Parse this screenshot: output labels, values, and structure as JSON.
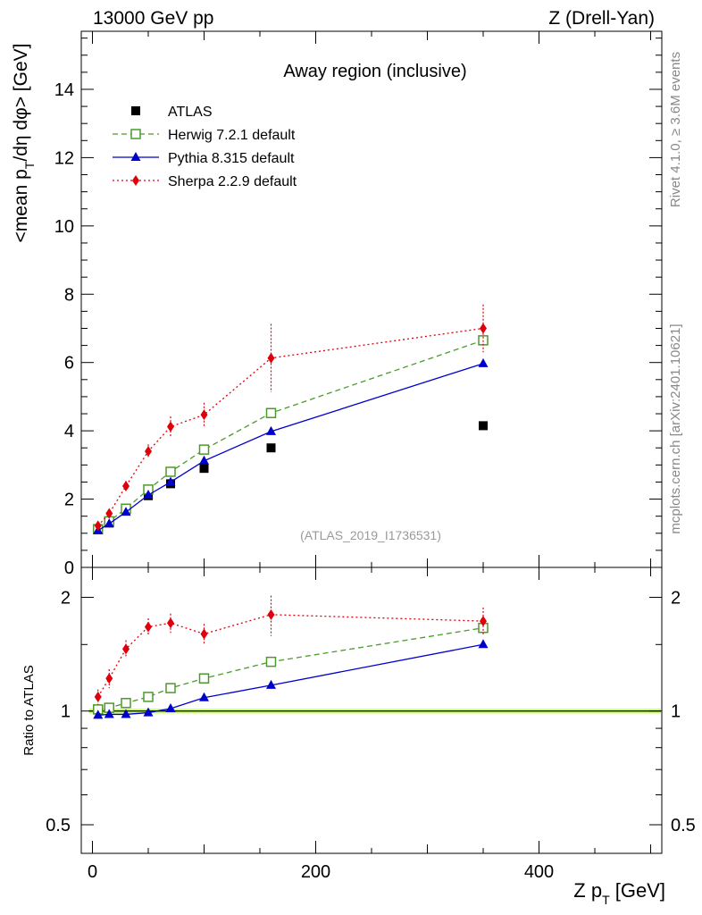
{
  "header": {
    "energy_label": "13000 GeV pp",
    "process_label": "Z (Drell-Yan)"
  },
  "side_labels": {
    "rivet": "Rivet 4.1.0, ≥ 3.6M events",
    "mcplots": "mcplots.cern.ch [arXiv:2401.10621]"
  },
  "chart_data": [
    {
      "type": "line",
      "panel": "main",
      "title": "Away region (inclusive)",
      "ylabel": "<mean p_T/dη dφ> [GeV]",
      "ylabel_parts": {
        "pre": "<mean p",
        "sub": "T",
        "post": "/dη dφ> [GeV]"
      },
      "xlim": [
        -10,
        510
      ],
      "ylim": [
        0,
        15.7
      ],
      "yticks": [
        0,
        2,
        4,
        6,
        8,
        10,
        12,
        14
      ],
      "yticklabels": [
        "0",
        "2",
        "4",
        "6",
        "8",
        "10",
        "12",
        "14"
      ],
      "watermark": "(ATLAS_2019_I1736531)",
      "legend_position": "top-left",
      "x": [
        5,
        15,
        30,
        50,
        70,
        100,
        160,
        350
      ],
      "series": [
        {
          "name": "ATLAS",
          "color": "#000000",
          "marker": "square",
          "line": "none",
          "values": [
            1.1,
            1.3,
            1.65,
            2.1,
            2.45,
            2.9,
            3.5,
            4.15
          ]
        },
        {
          "name": "Herwig 7.2.1 default",
          "color": "#4c9a2a",
          "marker": "open-square",
          "line": "dashed",
          "values": [
            1.12,
            1.35,
            1.72,
            2.28,
            2.8,
            3.45,
            4.52,
            6.65
          ]
        },
        {
          "name": "Pythia 8.315 default",
          "color": "#0000cc",
          "marker": "triangle",
          "line": "solid",
          "values": [
            1.08,
            1.28,
            1.62,
            2.12,
            2.5,
            3.12,
            3.98,
            5.97
          ]
        },
        {
          "name": "Sherpa 2.2.9 default",
          "color": "#e0000c",
          "marker": "diamond",
          "line": "dotted",
          "values": [
            1.22,
            1.58,
            2.38,
            3.4,
            4.12,
            4.47,
            6.13,
            7.0
          ],
          "errors": [
            0.1,
            0.12,
            0.15,
            0.2,
            0.3,
            0.35,
            1.0,
            0.7
          ]
        }
      ]
    },
    {
      "type": "line",
      "panel": "ratio",
      "ylabel": "Ratio to ATLAS",
      "xlabel": "Z p_T [GeV]",
      "xlabel_parts": {
        "pre": "Z p",
        "sub": "T",
        "post": " [GeV]"
      },
      "yscale": "log",
      "ylim": [
        0.42,
        2.4
      ],
      "yticks": [
        0.5,
        1,
        2
      ],
      "yticklabels": [
        "0.5",
        "1",
        "2"
      ],
      "xticks": [
        0,
        200,
        400
      ],
      "xticklabels": [
        "0",
        "200",
        "400"
      ],
      "reference": {
        "value": 1.0,
        "band": [
          0.985,
          1.015
        ],
        "band_color": "#ccff66"
      },
      "x": [
        5,
        15,
        30,
        50,
        70,
        100,
        160,
        350
      ],
      "series": [
        {
          "name": "Herwig 7.2.1 default",
          "color": "#4c9a2a",
          "marker": "open-square",
          "line": "dashed",
          "values": [
            1.01,
            1.02,
            1.05,
            1.09,
            1.15,
            1.22,
            1.35,
            1.66
          ]
        },
        {
          "name": "Pythia 8.315 default",
          "color": "#0000cc",
          "marker": "triangle",
          "line": "solid",
          "values": [
            0.975,
            0.98,
            0.98,
            0.99,
            1.015,
            1.085,
            1.17,
            1.5
          ]
        },
        {
          "name": "Sherpa 2.2.9 default",
          "color": "#e0000c",
          "marker": "diamond",
          "line": "dotted",
          "values": [
            1.09,
            1.22,
            1.46,
            1.67,
            1.71,
            1.6,
            1.8,
            1.73
          ],
          "errors": [
            0.05,
            0.07,
            0.08,
            0.09,
            0.1,
            0.1,
            0.22,
            0.15
          ]
        }
      ]
    }
  ]
}
